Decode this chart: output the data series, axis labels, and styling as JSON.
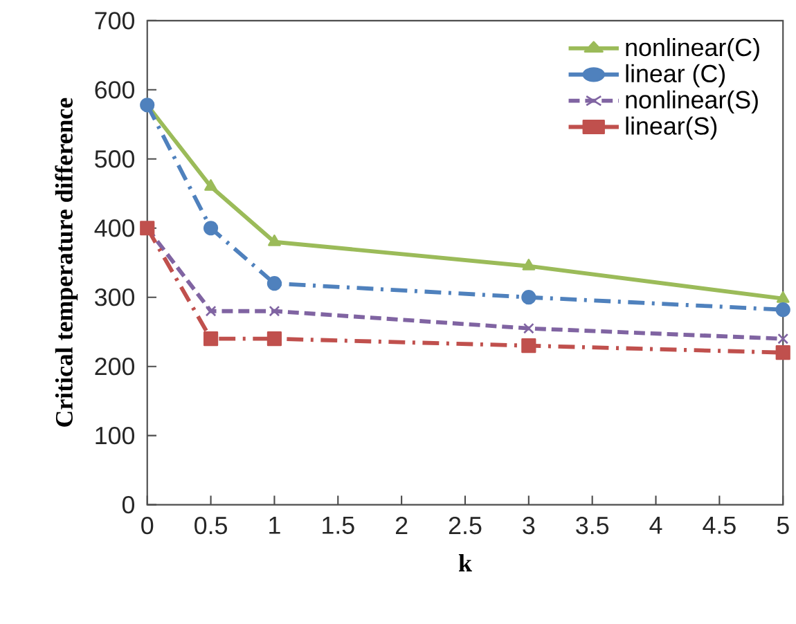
{
  "chart_data": {
    "type": "line",
    "xlabel": "k",
    "ylabel": "Critical temperature difference",
    "x": [
      0,
      0.5,
      1,
      3,
      5
    ],
    "series": [
      {
        "name": "nonlinear(C)",
        "color": "#9bbb59",
        "marker": "triangle",
        "line_style": "solid",
        "values": [
          578,
          460,
          380,
          345,
          298
        ]
      },
      {
        "name": "linear (C)",
        "color": "#4f81bd",
        "marker": "circle",
        "line_style": "dashdot",
        "values": [
          578,
          400,
          320,
          300,
          282
        ]
      },
      {
        "name": "nonlinear(S)",
        "color": "#8064a2",
        "marker": "cross",
        "line_style": "dashed",
        "values": [
          400,
          280,
          280,
          255,
          240
        ]
      },
      {
        "name": "linear(S)",
        "color": "#c0504d",
        "marker": "square",
        "line_style": "dashdot",
        "values": [
          400,
          240,
          240,
          230,
          220
        ]
      }
    ],
    "xlim": [
      0,
      5
    ],
    "ylim": [
      0,
      700
    ],
    "xticks": [
      0,
      0.5,
      1,
      1.5,
      2,
      2.5,
      3,
      3.5,
      4,
      4.5,
      5
    ],
    "yticks": [
      0,
      100,
      200,
      300,
      400,
      500,
      600,
      700
    ],
    "grid": false,
    "legend": "top right"
  }
}
